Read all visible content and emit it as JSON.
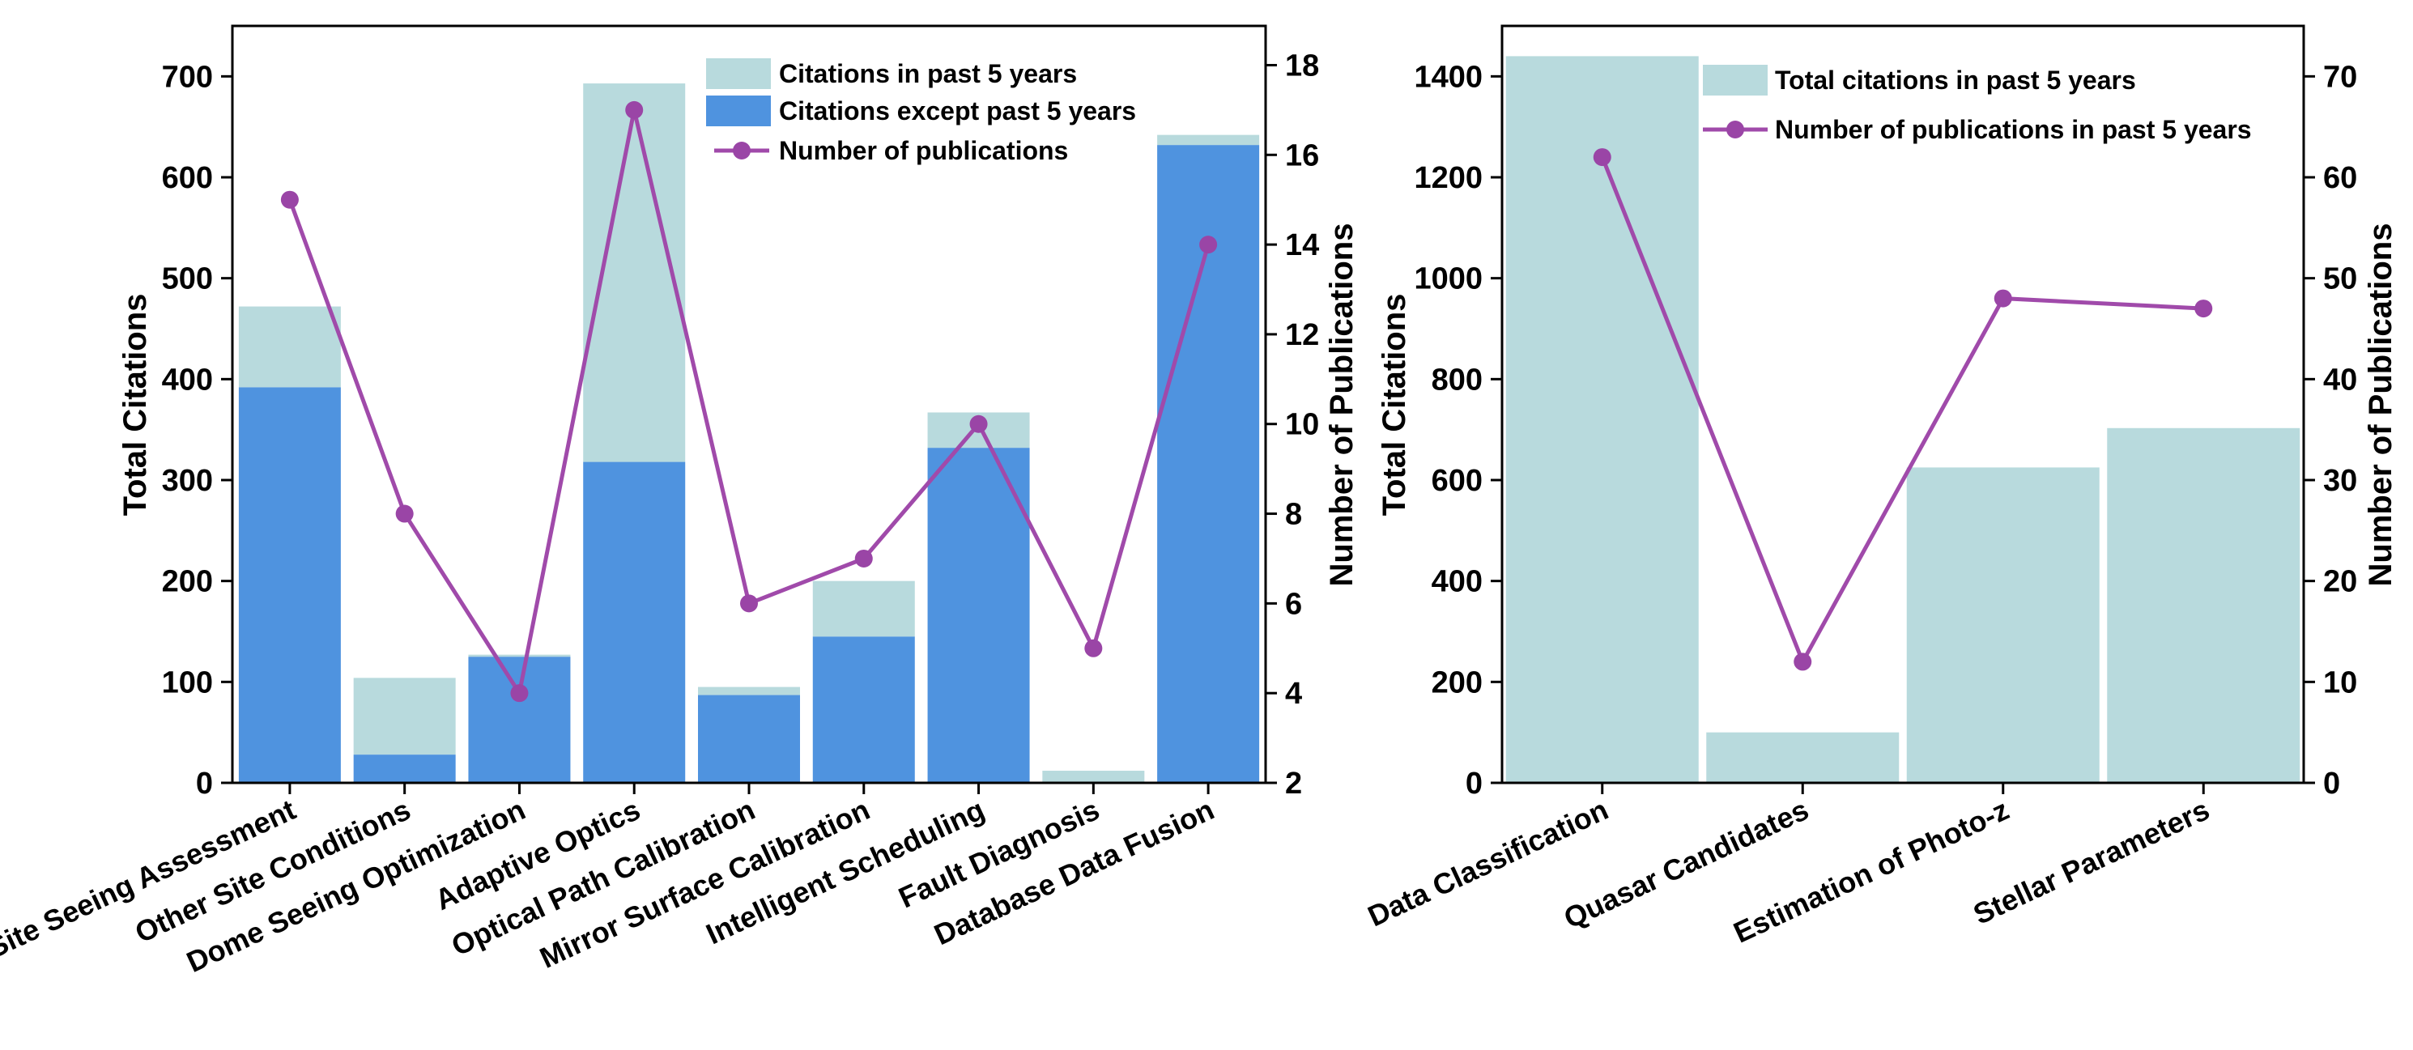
{
  "colors": {
    "recent": "#b8dadd",
    "older": "#4f93df",
    "line": "#a04aaa",
    "marker": "#9a45a6",
    "axis": "#000000"
  },
  "chart_data": [
    {
      "type": "bar",
      "stacked": true,
      "categories": [
        "Site Seeing Assessment",
        "Other Site Conditions",
        "Dome Seeing Optimization",
        "Adaptive Optics",
        "Optical Path Calibration",
        "Mirror Surface Calibration",
        "Intelligent Scheduling",
        "Fault Diagnosis",
        "Database Data Fusion"
      ],
      "series": [
        {
          "name": "Citations except past 5 years",
          "axis": "left",
          "values": [
            392,
            28,
            125,
            318,
            87,
            145,
            332,
            0,
            632
          ]
        },
        {
          "name": "Citations in past 5 years",
          "axis": "left",
          "values": [
            80,
            76,
            2,
            375,
            8,
            55,
            35,
            12,
            10
          ]
        },
        {
          "name": "Number of publications",
          "axis": "right",
          "kind": "line",
          "values": [
            15,
            8,
            4,
            17,
            6,
            7,
            10,
            5,
            14
          ]
        }
      ],
      "legend": [
        "Citations in past 5 years",
        "Citations except past 5 years",
        "Number of publications"
      ],
      "legend_position": "top-right",
      "ylabel": "Total Citations",
      "ylabel_right": "Number of Publications",
      "ylim": [
        0,
        750
      ],
      "ylim_right": [
        2,
        18.875
      ],
      "yticks": [
        "0",
        "100",
        "200",
        "300",
        "400",
        "500",
        "600",
        "700"
      ],
      "yticks_right": [
        "2",
        "4",
        "6",
        "8",
        "10",
        "12",
        "14",
        "16",
        "18"
      ]
    },
    {
      "type": "bar",
      "categories": [
        "Data Classification",
        "Quasar Candidates",
        "Estimation of Photo-z",
        "Stellar Parameters"
      ],
      "series": [
        {
          "name": "Total citations in past 5 years",
          "axis": "left",
          "values": [
            1440,
            100,
            625,
            703
          ]
        },
        {
          "name": "Number of publications in past 5 years",
          "axis": "right",
          "kind": "line",
          "values": [
            62,
            12,
            48,
            47
          ]
        }
      ],
      "legend": [
        "Total citations in past 5 years",
        "Number of publications in past 5 years"
      ],
      "legend_position": "top-right",
      "ylabel": "Total Citations",
      "ylabel_right": "Number of Publications",
      "ylim": [
        0,
        1500
      ],
      "ylim_right": [
        0,
        75
      ],
      "yticks": [
        "0",
        "200",
        "400",
        "600",
        "800",
        "1000",
        "1200",
        "1400"
      ],
      "yticks_right": [
        "0",
        "10",
        "20",
        "30",
        "40",
        "50",
        "60",
        "70"
      ]
    }
  ]
}
